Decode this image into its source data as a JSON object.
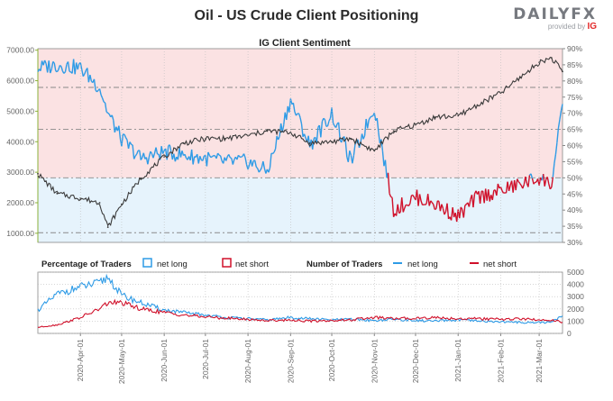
{
  "page": {
    "title": "Oil - US Crude Client Positioning",
    "brand": "DAILYFX",
    "brand_tagline": "provided by",
    "brand_partner": "IG"
  },
  "colors": {
    "price": "#3b3b3b",
    "net_long": "#2e9be6",
    "net_short": "#d0102a",
    "long_zone_bg": "#e6f3fc",
    "short_zone_bg": "#fbe2e3",
    "axis_text": "#666666",
    "grid": "#bdbdbd",
    "accent_green": "#8bb13a"
  },
  "chart_data": [
    {
      "type": "line",
      "title": "IG Client Sentiment",
      "x": [
        "2020-03-01",
        "2020-03-15",
        "2020-04-01",
        "2020-04-15",
        "2020-04-21",
        "2020-05-01",
        "2020-05-15",
        "2020-06-01",
        "2020-06-15",
        "2020-07-01",
        "2020-07-15",
        "2020-08-01",
        "2020-08-15",
        "2020-09-01",
        "2020-09-15",
        "2020-10-01",
        "2020-10-15",
        "2020-11-01",
        "2020-11-15",
        "2020-12-01",
        "2020-12-15",
        "2021-01-01",
        "2021-01-15",
        "2021-02-01",
        "2021-02-15",
        "2021-03-01",
        "2021-03-10",
        "2021-03-18"
      ],
      "y_left_ticks": [
        "1000.00",
        "2000.00",
        "3000.00",
        "4000.00",
        "5000.00",
        "6000.00",
        "7000.00"
      ],
      "y_left_range": [
        700,
        7050
      ],
      "y_right_ticks": [
        "30%",
        "35%",
        "40%",
        "45%",
        "50%",
        "55%",
        "60%",
        "65%",
        "70%",
        "75%",
        "80%",
        "85%",
        "90%"
      ],
      "y_right_range": [
        30,
        90
      ],
      "x_tick_labels": [
        "2020-Apr-01",
        "2020-May-01",
        "2020-Jun-01",
        "2020-Jul-01",
        "2020-Aug-01",
        "2020-Sep-01",
        "2020-Oct-01",
        "2020-Nov-01",
        "2020-Dec-01",
        "2021-Jan-01",
        "2021-Feb-01",
        "2021-Mar-01"
      ],
      "reference_lines_right": [
        33,
        50,
        65,
        78
      ],
      "series": [
        {
          "kind": "price",
          "values": [
            2950,
            2300,
            2150,
            2000,
            1200,
            1950,
            2800,
            3500,
            3950,
            4100,
            4100,
            4200,
            4350,
            4300,
            3950,
            4000,
            4100,
            3700,
            4350,
            4550,
            4800,
            4850,
            5200,
            5600,
            6100,
            6600,
            6750,
            6300
          ]
        },
        {
          "kind": "net_long_pct",
          "values": [
            84,
            85,
            84,
            78,
            70,
            62,
            56,
            58,
            57,
            56,
            55,
            55,
            52,
            74,
            60,
            70,
            55,
            72,
            40,
            44,
            42,
            38,
            44,
            46,
            48,
            50,
            48,
            72
          ]
        }
      ]
    },
    {
      "type": "line",
      "x": [
        "2020-03-01",
        "2020-03-15",
        "2020-04-01",
        "2020-04-15",
        "2020-04-21",
        "2020-05-01",
        "2020-05-15",
        "2020-06-01",
        "2020-06-15",
        "2020-07-01",
        "2020-07-15",
        "2020-08-01",
        "2020-08-15",
        "2020-09-01",
        "2020-09-15",
        "2020-10-01",
        "2020-10-15",
        "2020-11-01",
        "2020-11-15",
        "2020-12-01",
        "2020-12-15",
        "2021-01-01",
        "2021-01-15",
        "2021-02-01",
        "2021-02-15",
        "2021-03-01",
        "2021-03-10",
        "2021-03-18"
      ],
      "y_ticks": [
        "0",
        "1000",
        "2000",
        "3000",
        "4000",
        "5000"
      ],
      "ylim": [
        0,
        5000
      ],
      "series": [
        {
          "name": "net long",
          "values": [
            1900,
            3200,
            3800,
            4100,
            4600,
            3100,
            2500,
            1900,
            1700,
            1500,
            1300,
            1200,
            1100,
            1300,
            1200,
            1100,
            1150,
            1050,
            1150,
            1050,
            1000,
            1100,
            1000,
            950,
            900,
            900,
            900,
            1500
          ]
        },
        {
          "name": "net short",
          "values": [
            500,
            700,
            1300,
            2000,
            2500,
            2500,
            2000,
            1700,
            1500,
            1350,
            1250,
            1150,
            1050,
            1100,
            1000,
            1050,
            1100,
            1300,
            1200,
            1250,
            1300,
            1200,
            1200,
            1150,
            1200,
            1100,
            1100,
            900
          ]
        }
      ]
    }
  ],
  "legend": {
    "percentage_heading": "Percentage of Traders",
    "number_heading": "Number of Traders",
    "net_long": "net long",
    "net_short": "net short"
  }
}
